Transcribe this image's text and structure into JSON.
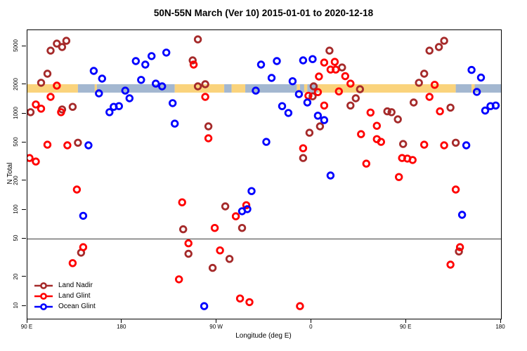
{
  "chart_data": {
    "type": "scatter",
    "title": "50N-55N March (Ver 10)  2015-01-01 to 2020-12-18",
    "xlabel": "Longitude (deg E)",
    "ylabel": "N Total",
    "y_scale": "log",
    "grid": false,
    "legend_position": "bottom-left",
    "x_axis": {
      "range": [
        90,
        540
      ],
      "ticks": [
        {
          "lon": 90,
          "label": "90 E"
        },
        {
          "lon": 180,
          "label": "180"
        },
        {
          "lon": 270,
          "label": "90 W"
        },
        {
          "lon": 360,
          "label": "0"
        },
        {
          "lon": 450,
          "label": "90 E"
        },
        {
          "lon": 540,
          "label": "180"
        }
      ]
    },
    "y_axis": {
      "range": [
        7.4,
        7400
      ],
      "ticks": [
        5000,
        2000,
        1000,
        500,
        200,
        100,
        50,
        20,
        10
      ]
    },
    "reference_line_y": 50,
    "band": {
      "value_top": 2030,
      "value_bottom": 1660,
      "colors": {
        "land": "#FAD37C",
        "ocean": "#A3B7D0"
      },
      "segments": [
        {
          "from": 90,
          "to": 138,
          "surface": "land"
        },
        {
          "from": 138,
          "to": 154,
          "surface": "ocean"
        },
        {
          "from": 154,
          "to": 156,
          "surface": "land"
        },
        {
          "from": 156,
          "to": 230,
          "surface": "ocean"
        },
        {
          "from": 230,
          "to": 277,
          "surface": "land"
        },
        {
          "from": 277,
          "to": 284,
          "surface": "ocean"
        },
        {
          "from": 284,
          "to": 297,
          "surface": "land"
        },
        {
          "from": 297,
          "to": 346,
          "surface": "ocean"
        },
        {
          "from": 346,
          "to": 349,
          "surface": "land"
        },
        {
          "from": 349,
          "to": 353,
          "surface": "ocean"
        },
        {
          "from": 353,
          "to": 356,
          "surface": "land"
        },
        {
          "from": 356,
          "to": 366,
          "surface": "ocean"
        },
        {
          "from": 366,
          "to": 497,
          "surface": "land"
        },
        {
          "from": 497,
          "to": 512,
          "surface": "ocean"
        },
        {
          "from": 512,
          "to": 515,
          "surface": "land"
        },
        {
          "from": 515,
          "to": 540,
          "surface": "ocean"
        }
      ]
    },
    "series": [
      {
        "id": "land-nadir",
        "name": "Land Nadir",
        "color": "#A52A2A",
        "points": [
          [
            118,
            5370
          ],
          [
            127,
            5740
          ],
          [
            123,
            4940
          ],
          [
            112,
            4540
          ],
          [
            109,
            2610
          ],
          [
            103,
            2100
          ],
          [
            93,
            1040
          ],
          [
            123,
            1110
          ],
          [
            133,
            1180
          ],
          [
            138,
            500
          ],
          [
            141,
            36
          ],
          [
            252,
            5940
          ],
          [
            247,
            3590
          ],
          [
            252,
            1930
          ],
          [
            259,
            2030
          ],
          [
            262,
            740
          ],
          [
            278,
            109
          ],
          [
            294,
            65
          ],
          [
            243,
            35
          ],
          [
            282,
            31
          ],
          [
            266,
            25
          ],
          [
            238,
            63
          ],
          [
            352,
            347
          ],
          [
            358,
            635
          ],
          [
            368,
            740
          ],
          [
            362,
            1930
          ],
          [
            361,
            1520
          ],
          [
            377,
            4540
          ],
          [
            389,
            3030
          ],
          [
            406,
            1800
          ],
          [
            402,
            1450
          ],
          [
            397,
            1220
          ],
          [
            432,
            1060
          ],
          [
            436,
            1040
          ],
          [
            442,
            875
          ],
          [
            457,
            1310
          ],
          [
            447,
            485
          ],
          [
            462,
            2100
          ],
          [
            467,
            2610
          ],
          [
            472,
            4540
          ],
          [
            481,
            4940
          ],
          [
            486,
            5740
          ],
          [
            492,
            1160
          ],
          [
            497,
            500
          ],
          [
            500,
            37
          ]
        ]
      },
      {
        "id": "land-glint",
        "name": "Land Glint",
        "color": "#FF0000",
        "points": [
          [
            118,
            1960
          ],
          [
            112,
            1500
          ],
          [
            98,
            1250
          ],
          [
            103,
            1130
          ],
          [
            122,
            1040
          ],
          [
            109,
            477
          ],
          [
            128,
            470
          ],
          [
            92,
            347
          ],
          [
            98,
            319
          ],
          [
            137,
            163
          ],
          [
            143,
            41
          ],
          [
            133,
            28
          ],
          [
            248,
            3250
          ],
          [
            259,
            1500
          ],
          [
            262,
            556
          ],
          [
            237,
            120
          ],
          [
            243,
            45
          ],
          [
            273,
            38
          ],
          [
            268,
            65
          ],
          [
            288,
            86
          ],
          [
            298,
            112
          ],
          [
            292,
            12
          ],
          [
            301,
            11
          ],
          [
            234,
            19
          ],
          [
            349,
            10
          ],
          [
            352,
            438
          ],
          [
            357,
            1540
          ],
          [
            366,
            1680
          ],
          [
            367,
            2440
          ],
          [
            372,
            3410
          ],
          [
            382,
            3470
          ],
          [
            378,
            2880
          ],
          [
            383,
            2880
          ],
          [
            392,
            2460
          ],
          [
            397,
            2060
          ],
          [
            386,
            1710
          ],
          [
            372,
            1220
          ],
          [
            416,
            1030
          ],
          [
            422,
            750
          ],
          [
            407,
            614
          ],
          [
            422,
            545
          ],
          [
            426,
            510
          ],
          [
            412,
            303
          ],
          [
            446,
            347
          ],
          [
            451,
            342
          ],
          [
            456,
            331
          ],
          [
            467,
            477
          ],
          [
            486,
            470
          ],
          [
            477,
            2000
          ],
          [
            472,
            1500
          ],
          [
            482,
            1060
          ],
          [
            443,
            220
          ],
          [
            497,
            163
          ],
          [
            501,
            41
          ],
          [
            492,
            27
          ]
        ]
      },
      {
        "id": "ocean-glint",
        "name": "Ocean Glint",
        "color": "#0000FF",
        "points": [
          [
            153,
            2790
          ],
          [
            161,
            2320
          ],
          [
            193,
            3530
          ],
          [
            202,
            3250
          ],
          [
            208,
            3980
          ],
          [
            222,
            4330
          ],
          [
            158,
            1630
          ],
          [
            183,
            1740
          ],
          [
            187,
            1450
          ],
          [
            198,
            2250
          ],
          [
            212,
            2060
          ],
          [
            218,
            1930
          ],
          [
            168,
            1040
          ],
          [
            172,
            1180
          ],
          [
            177,
            1200
          ],
          [
            228,
            1290
          ],
          [
            230,
            790
          ],
          [
            148,
            470
          ],
          [
            143,
            87
          ],
          [
            258,
            10
          ],
          [
            312,
            3250
          ],
          [
            327,
            3530
          ],
          [
            352,
            3590
          ],
          [
            361,
            3700
          ],
          [
            322,
            2360
          ],
          [
            342,
            2180
          ],
          [
            307,
            1740
          ],
          [
            348,
            1600
          ],
          [
            356,
            1310
          ],
          [
            332,
            1200
          ],
          [
            338,
            1020
          ],
          [
            366,
            955
          ],
          [
            372,
            860
          ],
          [
            317,
            510
          ],
          [
            378,
            228
          ],
          [
            303,
            157
          ],
          [
            294,
            97
          ],
          [
            299,
            102
          ],
          [
            512,
            2860
          ],
          [
            521,
            2380
          ],
          [
            517,
            1690
          ],
          [
            525,
            1080
          ],
          [
            530,
            1200
          ],
          [
            535,
            1220
          ],
          [
            507,
            470
          ],
          [
            503,
            89
          ]
        ]
      }
    ]
  }
}
